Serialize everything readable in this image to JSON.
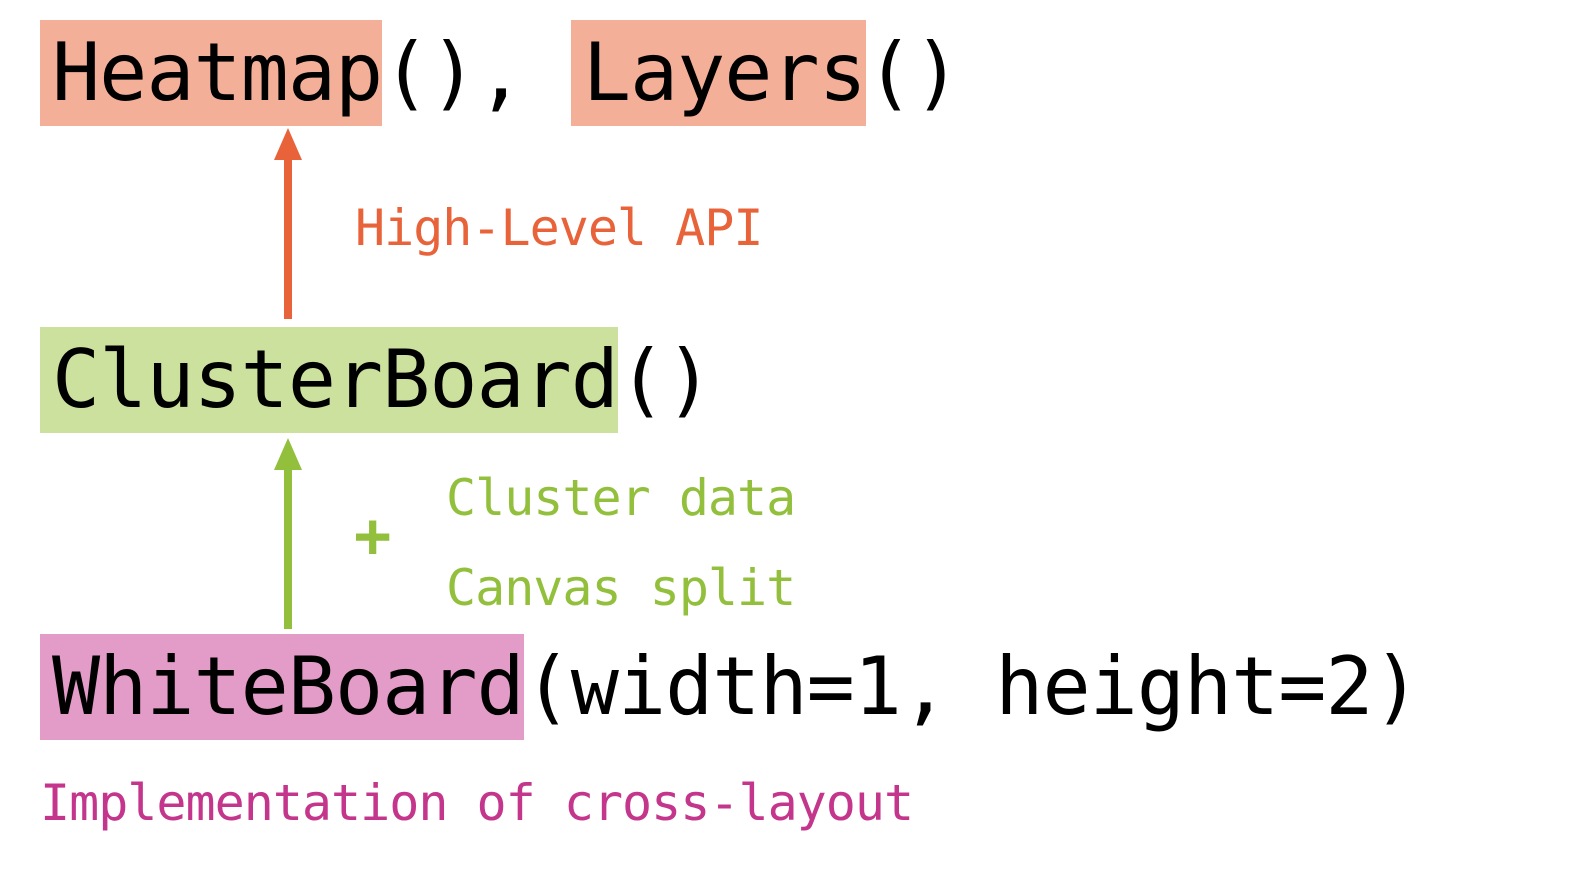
{
  "colors": {
    "orange_highlight": "#f4af98",
    "orange_accent": "#e8633a",
    "green_highlight": "#cce19d",
    "green_accent": "#93c03c",
    "pink_highlight": "#e39bc7",
    "pink_accent": "#c4358c"
  },
  "top_line": {
    "heatmap": "Heatmap",
    "sep": "(), ",
    "layers": "Layers",
    "tail": "()"
  },
  "middle_line": {
    "cluster_board": "ClusterBoard",
    "tail": "()"
  },
  "bottom_line": {
    "white_board": "WhiteBoard",
    "args": "(width=1, height=2)"
  },
  "annotations": {
    "high_level_api": "High-Level API",
    "plus": "+",
    "cluster_data": "Cluster data",
    "canvas_split": "Canvas split",
    "implementation": "Implementation of cross-layout"
  },
  "arrows": [
    {
      "name": "arrow-high-level-api",
      "color": "orange_accent"
    },
    {
      "name": "arrow-cluster-board",
      "color": "green_accent"
    }
  ]
}
